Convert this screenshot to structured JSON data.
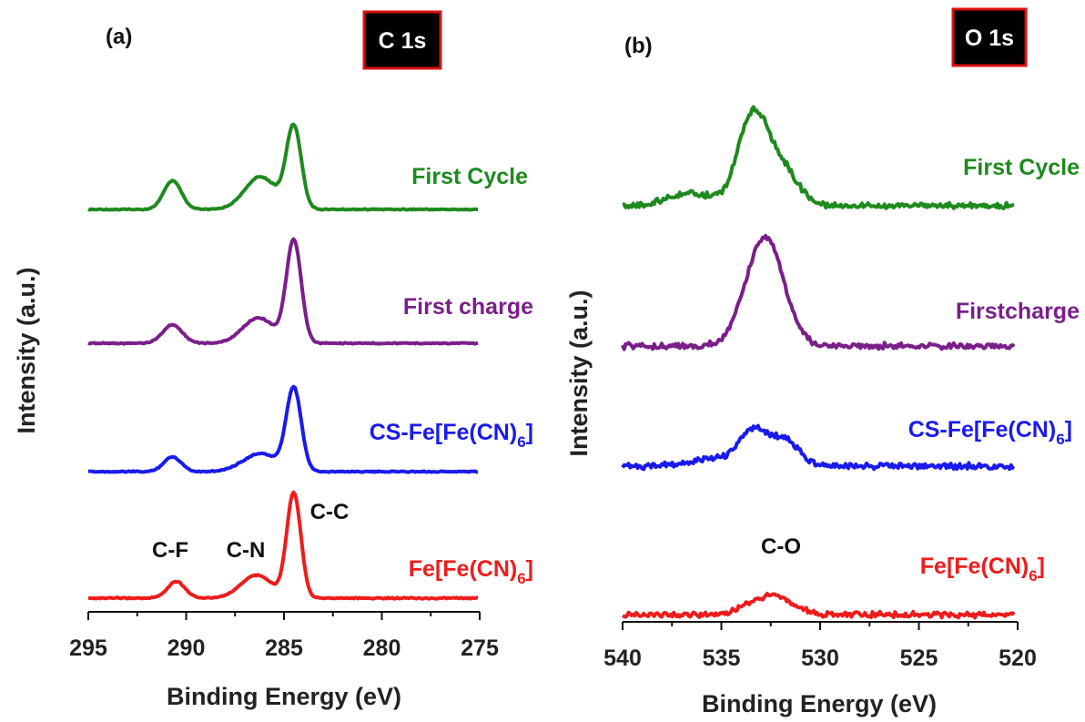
{
  "colors": {
    "first_cycle": "#1e8a1e",
    "first_charge": "#7a1f8a",
    "cs": "#1a1aee",
    "fe": "#ee1c1c",
    "axis": "#111111",
    "badge_bg": "#000000",
    "badge_border": "#dd1111"
  },
  "chart_data": [
    {
      "type": "line",
      "panel": "(a)",
      "badge": "C 1s",
      "xlabel": "Binding Energy (eV)",
      "ylabel": "Intensity (a.u.)",
      "xlim": [
        295,
        275
      ],
      "x_reversed": true,
      "xticks": [
        "295",
        "290",
        "285",
        "280",
        "275"
      ],
      "peak_labels": [
        {
          "text": "C-F",
          "x": 291.0
        },
        {
          "text": "C-N",
          "x": 287.6
        },
        {
          "text": "C-C",
          "x": 283.5
        }
      ],
      "series": [
        {
          "name": "First Cycle",
          "color_key": "first_cycle",
          "peaks": [
            {
              "center": 290.7,
              "height": 0.35,
              "width": 0.45
            },
            {
              "center": 286.2,
              "height": 0.4,
              "width": 0.8
            },
            {
              "center": 284.5,
              "height": 1.0,
              "width": 0.38
            }
          ]
        },
        {
          "name": "First charge",
          "color_key": "first_charge",
          "peaks": [
            {
              "center": 290.7,
              "height": 0.18,
              "width": 0.5
            },
            {
              "center": 286.3,
              "height": 0.25,
              "width": 0.8
            },
            {
              "center": 284.5,
              "height": 1.0,
              "width": 0.38
            }
          ]
        },
        {
          "name": "CS-Fe[Fe(CN)6]",
          "color_key": "cs",
          "peaks": [
            {
              "center": 290.7,
              "height": 0.18,
              "width": 0.45
            },
            {
              "center": 286.2,
              "height": 0.22,
              "width": 0.9
            },
            {
              "center": 284.5,
              "height": 1.0,
              "width": 0.38
            }
          ]
        },
        {
          "name": "Fe[Fe(CN)6]",
          "color_key": "fe",
          "peaks": [
            {
              "center": 290.5,
              "height": 0.16,
              "width": 0.45
            },
            {
              "center": 286.4,
              "height": 0.22,
              "width": 0.8
            },
            {
              "center": 284.5,
              "height": 1.0,
              "width": 0.36
            }
          ]
        }
      ]
    },
    {
      "type": "line",
      "panel": "(b)",
      "badge": "O 1s",
      "xlabel": "Binding Energy (eV)",
      "ylabel": "Intensity (a.u.)",
      "xlim": [
        540,
        520
      ],
      "x_reversed": true,
      "xticks": [
        "540",
        "535",
        "530",
        "525",
        "520"
      ],
      "peak_labels": [
        {
          "text": "C-O",
          "x": 532.8
        }
      ],
      "series": [
        {
          "name": "First Cycle",
          "color_key": "first_cycle",
          "peaks": [
            {
              "center": 533.4,
              "height": 0.9,
              "width": 0.75
            },
            {
              "center": 531.9,
              "height": 0.35,
              "width": 0.8
            },
            {
              "center": 536.5,
              "height": 0.12,
              "width": 1.2
            }
          ]
        },
        {
          "name": "Firstcharge",
          "color_key": "first_charge",
          "peaks": [
            {
              "center": 532.8,
              "height": 1.0,
              "width": 0.95
            }
          ]
        },
        {
          "name": "CS-Fe[Fe(CN)6]",
          "color_key": "cs",
          "peaks": [
            {
              "center": 533.4,
              "height": 0.55,
              "width": 0.7
            },
            {
              "center": 531.8,
              "height": 0.42,
              "width": 0.7
            },
            {
              "center": 535.5,
              "height": 0.12,
              "width": 1.2
            }
          ]
        },
        {
          "name": "Fe[Fe(CN)6]",
          "color_key": "fe",
          "peaks": [
            {
              "center": 533.0,
              "height": 0.35,
              "width": 0.9
            },
            {
              "center": 531.8,
              "height": 0.25,
              "width": 0.7
            }
          ]
        }
      ]
    }
  ]
}
